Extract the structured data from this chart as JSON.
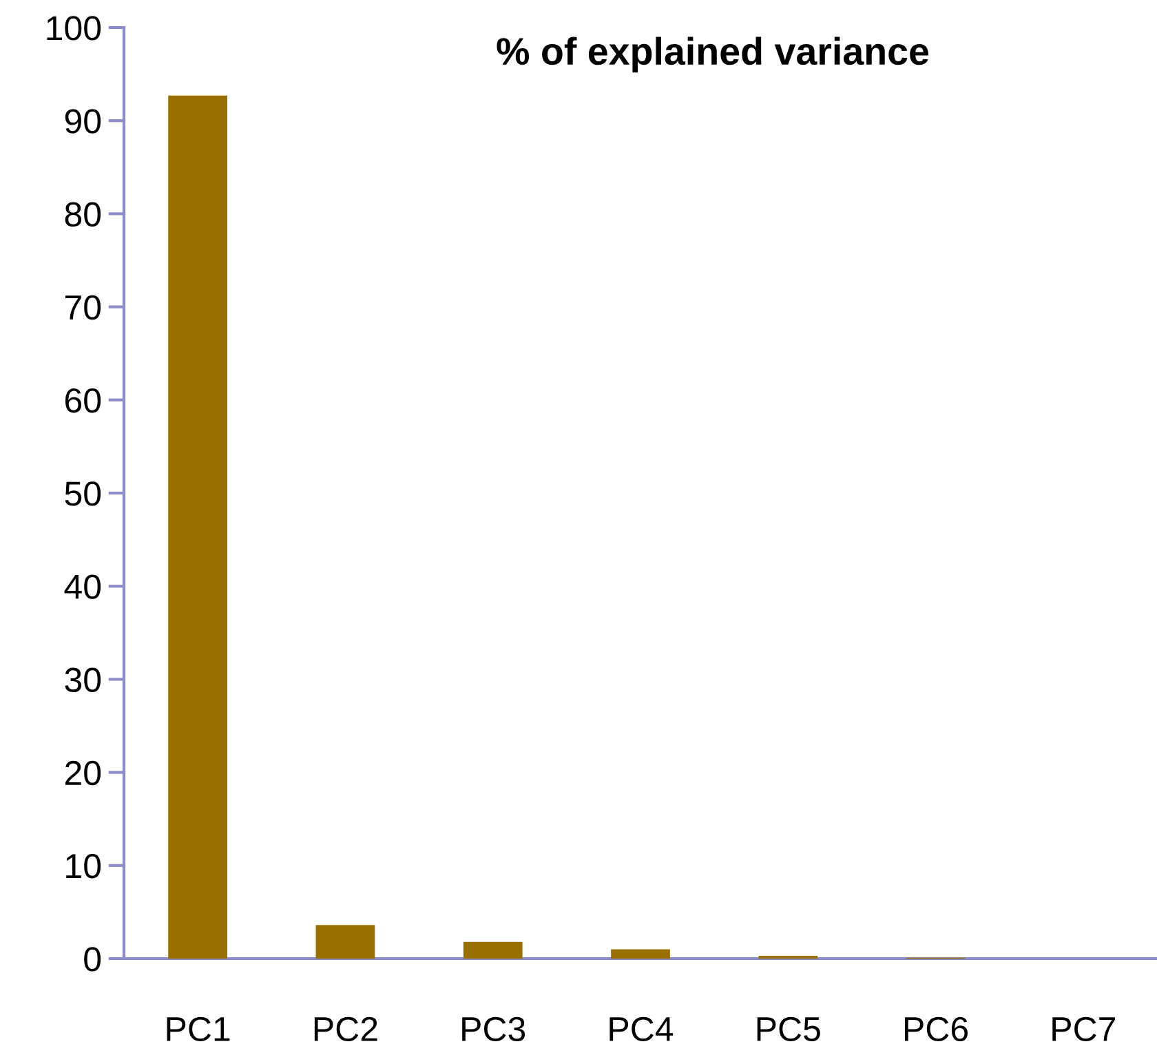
{
  "chart_data": {
    "type": "bar",
    "title": "% of explained variance",
    "categories": [
      "PC1",
      "PC2",
      "PC3",
      "PC4",
      "PC5",
      "PC6",
      "PC7"
    ],
    "values": [
      92.7,
      3.6,
      1.8,
      1.0,
      0.3,
      0.1,
      0.0
    ],
    "color": "#996f00",
    "ylim": [
      0,
      100
    ],
    "yticks": [
      0,
      10,
      20,
      30,
      40,
      50,
      60,
      70,
      80,
      90,
      100
    ],
    "grid": false
  }
}
